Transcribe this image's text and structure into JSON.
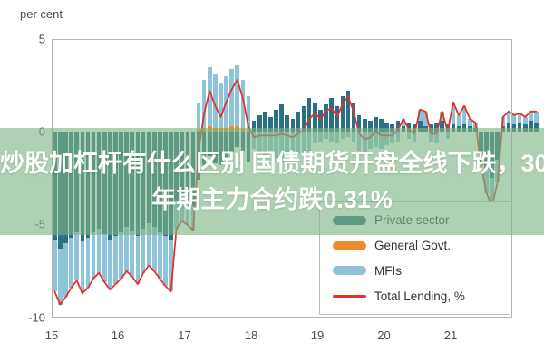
{
  "unit_label": "per cent",
  "overlay": {
    "line1": "炒股加杠杆有什么区别 国债期货开盘全线下跌，30",
    "line2": "年期主力合约跌0.31%"
  },
  "colors": {
    "private_sector": "#2a7086",
    "general_govt": "#ef8a2e",
    "mfis": "#8ec4da",
    "total_lending": "#e2332a",
    "axis_border": "#b3b3b3",
    "tick_text": "#4d4d4d",
    "overlay_band": "rgba(122,180,130,0.62)"
  },
  "legend": {
    "items": [
      {
        "label": "Private sector",
        "color_key": "private_sector",
        "swatch": "bar"
      },
      {
        "label": "General Govt.",
        "color_key": "general_govt",
        "swatch": "bar"
      },
      {
        "label": "MFIs",
        "color_key": "mfis",
        "swatch": "bar"
      },
      {
        "label": "Total Lending, %",
        "color_key": "total_lending",
        "swatch": "line"
      }
    ]
  },
  "axes": {
    "y_ticks": [
      "5",
      "0",
      "-5",
      "-10"
    ],
    "y_tick_values": [
      5,
      0,
      -5,
      -10
    ],
    "x_ticks": [
      "15",
      "16",
      "17",
      "18",
      "19",
      "20",
      "21"
    ],
    "ylim": [
      -10,
      5
    ]
  },
  "chart_data": {
    "type": "bar",
    "subtype": "stacked-monthly-bars-with-line",
    "title": "",
    "ylabel": "per cent",
    "x_start": "2015-01",
    "x_end": "2022-04",
    "frequency": "monthly",
    "ylim": [
      -10,
      5
    ],
    "grid": false,
    "legend_position": "bottom-right-box",
    "series": [
      {
        "name": "Private sector",
        "color_key": "private_sector",
        "values": [
          -5.8,
          -6.3,
          -6.0,
          -5.7,
          -5.4,
          -5.9,
          -5.7,
          -5.4,
          -5.2,
          -5.5,
          -5.8,
          -5.6,
          -5.4,
          -5.1,
          -5.3,
          -5.6,
          -5.2,
          -4.9,
          -5.1,
          -5.4,
          -5.6,
          -5.8,
          -3.7,
          -3.4,
          -3.8,
          -4.0,
          -2.6,
          -1.8,
          -1.3,
          -1.7,
          -1.8,
          -1.4,
          -1.1,
          -0.8,
          -1.0,
          -1.6,
          0.6,
          0.9,
          1.1,
          0.8,
          1.2,
          1.5,
          0.9,
          0.7,
          1.1,
          1.4,
          1.8,
          1.6,
          1.2,
          1.5,
          1.8,
          1.4,
          1.9,
          2.2,
          1.6,
          0.9,
          0.7,
          0.6,
          0.8,
          0.7,
          0.5,
          0.4,
          0.6,
          0.3,
          0.5,
          0.4,
          0.6,
          0.3,
          0.4,
          0.5,
          0.6,
          0.4,
          0.4,
          0.3,
          0.4,
          0.3,
          0.2,
          -1.0,
          -2.0,
          -2.5,
          -1.5,
          0.3,
          0.5,
          0.4,
          0.5,
          0.4,
          0.6,
          0.5
        ]
      },
      {
        "name": "General Govt.",
        "color_key": "general_govt",
        "values": [
          0,
          0,
          0,
          0,
          0,
          0,
          0,
          0,
          0,
          0,
          0,
          0,
          0,
          0,
          0,
          0,
          0,
          0,
          0,
          0,
          0,
          0,
          0,
          0,
          0,
          0,
          0.1,
          0.2,
          0.3,
          0.2,
          0.2,
          0.2,
          0.3,
          0.3,
          0.2,
          0.1,
          0,
          0,
          0,
          0,
          0,
          0,
          0,
          0,
          0,
          0,
          0,
          0,
          0,
          0,
          0,
          0,
          0,
          0,
          0,
          0,
          0,
          0,
          0,
          0,
          0,
          0,
          0,
          0,
          0,
          0,
          0,
          0,
          0,
          0,
          0,
          0,
          0,
          0,
          0,
          0,
          0,
          0,
          0,
          0,
          0,
          0,
          0,
          0,
          0,
          0,
          0,
          0
        ]
      },
      {
        "name": "MFIs",
        "color_key": "mfis",
        "values": [
          -2.8,
          -3.0,
          -2.9,
          -2.7,
          -2.6,
          -2.8,
          -2.7,
          -2.5,
          -2.4,
          -2.6,
          -2.7,
          -2.6,
          -2.5,
          -2.4,
          -2.5,
          -2.6,
          -2.4,
          -2.3,
          -2.4,
          -2.5,
          -2.7,
          -2.8,
          -1.5,
          -1.4,
          -1.2,
          -1.3,
          1.5,
          2.6,
          3.2,
          2.9,
          2.4,
          2.8,
          3.1,
          3.3,
          2.6,
          1.8,
          -0.9,
          -1.1,
          -1.3,
          -1.0,
          -1.4,
          -1.6,
          -1.1,
          -1.0,
          -1.2,
          -1.3,
          -1.1,
          -0.6,
          -0.5,
          -0.4,
          -0.5,
          -0.6,
          -0.4,
          -0.3,
          -0.5,
          -1.0,
          -1.1,
          -0.9,
          -0.8,
          -0.9,
          -0.7,
          -0.6,
          -0.5,
          0.4,
          -0.4,
          -0.5,
          0.6,
          0.8,
          -0.5,
          -0.6,
          0.5,
          -0.4,
          1.2,
          0.6,
          1.0,
          0.4,
          0.3,
          -0.8,
          -1.3,
          -1.5,
          -1.2,
          0.5,
          0.6,
          0.5,
          0.5,
          0.4,
          0.5,
          0.6
        ]
      }
    ],
    "line_series": {
      "name": "Total Lending, %",
      "color_key": "total_lending",
      "values": [
        -8.6,
        -9.3,
        -8.9,
        -8.4,
        -8.0,
        -8.7,
        -8.4,
        -7.9,
        -7.6,
        -8.1,
        -8.5,
        -8.2,
        -7.9,
        -7.5,
        -7.8,
        -8.2,
        -7.6,
        -7.2,
        -7.5,
        -7.9,
        -8.3,
        -8.6,
        -5.2,
        -4.8,
        -5.0,
        -5.3,
        -1.0,
        1.0,
        2.2,
        1.4,
        0.8,
        1.6,
        2.3,
        2.8,
        1.8,
        0.3,
        -0.3,
        -0.2,
        -0.2,
        -0.2,
        -0.2,
        -0.1,
        -0.2,
        -0.3,
        -0.1,
        0.1,
        0.7,
        1.0,
        0.7,
        1.1,
        1.3,
        0.8,
        1.5,
        1.9,
        1.1,
        -0.1,
        -0.4,
        -0.3,
        0.0,
        -0.2,
        -0.2,
        -0.2,
        0.1,
        0.7,
        0.1,
        -0.1,
        1.2,
        1.1,
        -0.1,
        -0.1,
        1.1,
        0.0,
        1.6,
        0.9,
        1.4,
        0.7,
        0.5,
        -1.8,
        -3.3,
        -4.0,
        -2.7,
        0.8,
        1.1,
        0.9,
        1.0,
        0.8,
        1.1,
        1.1
      ]
    }
  }
}
